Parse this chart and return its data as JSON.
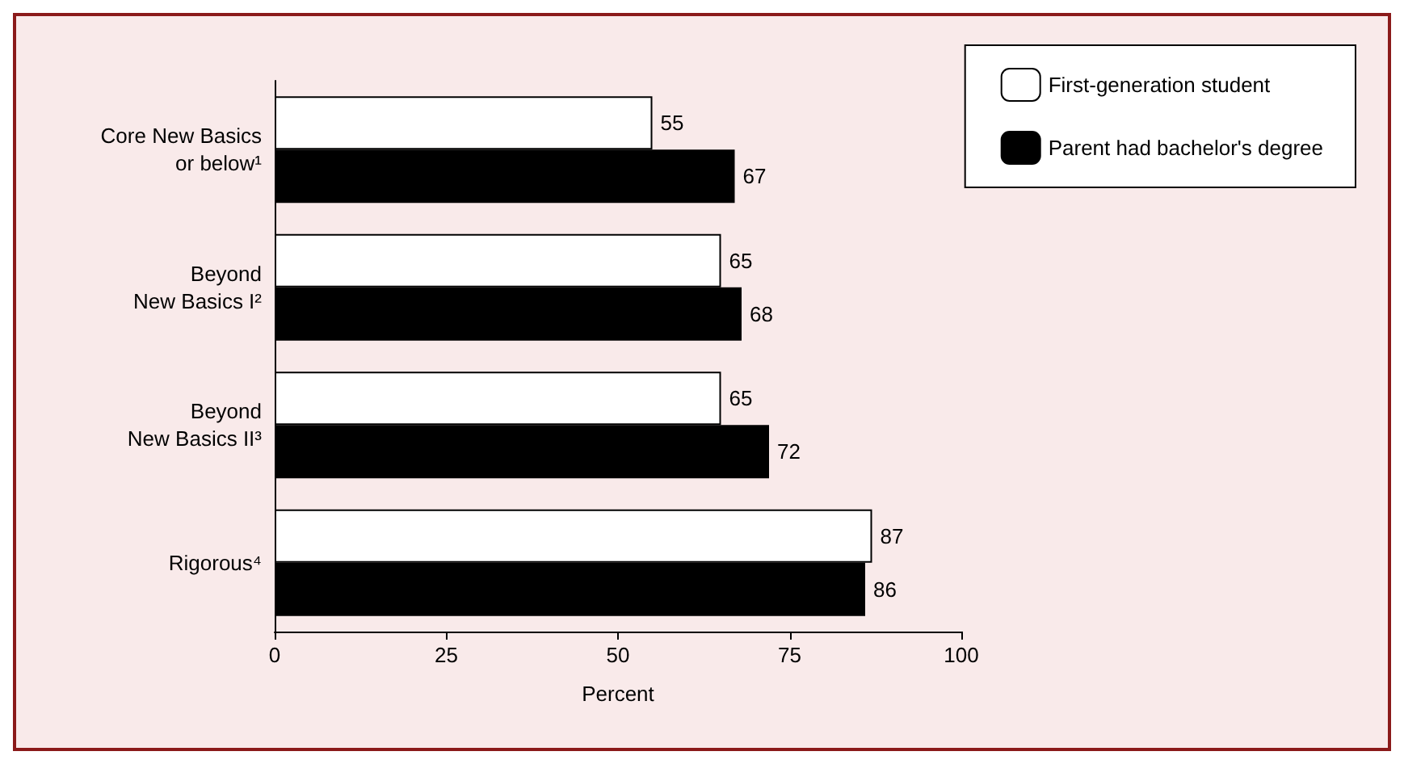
{
  "chart_data": {
    "type": "bar",
    "orientation": "horizontal",
    "categories": [
      "Core New Basics\nor below¹",
      "Beyond\nNew Basics I²",
      "Beyond\nNew Basics II³",
      "Rigorous⁴"
    ],
    "series": [
      {
        "name": "First-generation student",
        "color": "#ffffff",
        "values": [
          55,
          65,
          65,
          87
        ]
      },
      {
        "name": "Parent had bachelor's degree",
        "color": "#000000",
        "values": [
          67,
          68,
          72,
          86
        ]
      }
    ],
    "xlabel": "Percent",
    "xlim": [
      0,
      100
    ],
    "xticks": [
      0,
      25,
      50,
      75,
      100
    ],
    "grid": false,
    "legend": "top right",
    "data_labels": true
  }
}
